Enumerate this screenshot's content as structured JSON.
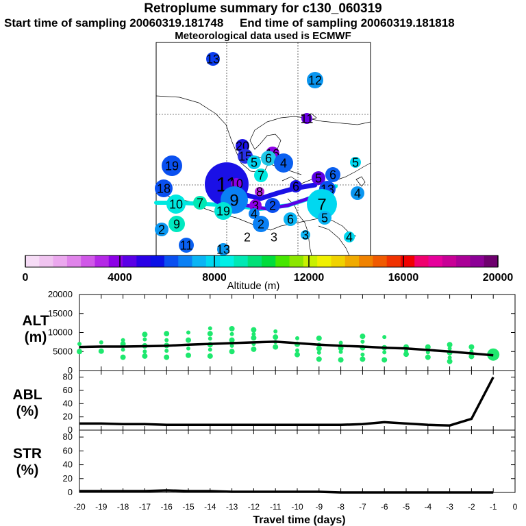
{
  "header": {
    "title": "Retroplume summary for c130_060319",
    "sampling_line": "Start time of sampling 20060319.181748     End time of sampling 20060319.181818",
    "met_line": "Meteorological data used is ECMWF"
  },
  "colors": {
    "colorbar": [
      "#f6dcf6",
      "#f0c4f0",
      "#eba8ee",
      "#e084ea",
      "#d058e8",
      "#b428e6",
      "#8c00e6",
      "#5a00e6",
      "#2a00e6",
      "#0a10e6",
      "#0a50f0",
      "#0a80f4",
      "#0ab4f4",
      "#00d8f0",
      "#00f0e6",
      "#00e8b4",
      "#00e078",
      "#00dc3c",
      "#46e600",
      "#8ce600",
      "#c8f000",
      "#f0f000",
      "#f0d200",
      "#f0aa00",
      "#f08200",
      "#f05a00",
      "#f03200",
      "#f00000",
      "#f0006e",
      "#e6009b",
      "#c80096",
      "#aa0096",
      "#8c0096",
      "#6e006e"
    ],
    "line": "#000000",
    "point": "#1ee86e"
  },
  "map": {
    "clusters": [
      {
        "label": "13",
        "color": "#0a3cf0",
        "size": 10
      },
      {
        "label": "12",
        "color": "#0a96f0",
        "size": 12
      },
      {
        "label": "11",
        "color": "#6a00e6",
        "size": 8
      },
      {
        "label": "20",
        "color": "#1a10e6",
        "size": 10
      },
      {
        "label": "16",
        "color": "#8c00e6",
        "size": 10
      },
      {
        "label": "15",
        "color": "#2830e6",
        "size": 11
      },
      {
        "label": "5",
        "color": "#00d0f0",
        "size": 10
      },
      {
        "label": "6",
        "color": "#20c8e8",
        "size": 11
      },
      {
        "label": "4",
        "color": "#0a60f0",
        "size": 14
      },
      {
        "label": "19",
        "color": "#0a50f0",
        "size": 15
      },
      {
        "label": "7",
        "color": "#00e8e0",
        "size": 10
      },
      {
        "label": "18",
        "color": "#0a50f0",
        "size": 13
      },
      {
        "label": "11",
        "color": "#1a10e6",
        "size": 32
      },
      {
        "label": "10",
        "color": "#8c00e6",
        "size": 8
      },
      {
        "label": "8",
        "color": "#b428e6",
        "size": 7
      },
      {
        "label": "6",
        "color": "#1a10e6",
        "size": 9
      },
      {
        "label": "5",
        "color": "#5a00e6",
        "size": 10
      },
      {
        "label": "13",
        "color": "#0a50f0",
        "size": 12
      },
      {
        "label": "6",
        "color": "#0a60f0",
        "size": 11
      },
      {
        "label": "5",
        "color": "#00d8f0",
        "size": 8
      },
      {
        "label": "4",
        "color": "#0a96f0",
        "size": 10
      },
      {
        "label": "10",
        "color": "#00e8e0",
        "size": 14
      },
      {
        "label": "7",
        "color": "#00e8b4",
        "size": 10
      },
      {
        "label": "9",
        "color": "#0a80f4",
        "size": 20
      },
      {
        "label": "19",
        "color": "#00e6d6",
        "size": 13
      },
      {
        "label": "3",
        "color": "#8c00e6",
        "size": 9
      },
      {
        "label": "2",
        "color": "#0a50f0",
        "size": 11
      },
      {
        "label": "4",
        "color": "#0a80f4",
        "size": 8
      },
      {
        "label": "7",
        "color": "#00d8f0",
        "size": 22
      },
      {
        "label": "2",
        "color": "#0a80f4",
        "size": 12
      },
      {
        "label": "6",
        "color": "#0ab4f4",
        "size": 10
      },
      {
        "label": "5",
        "color": "#0ab4f4",
        "size": 10
      },
      {
        "label": "9",
        "color": "#00e8c0",
        "size": 12
      },
      {
        "label": "2",
        "color": "#0a96f0",
        "size": 10
      },
      {
        "label": "11",
        "color": "#0a60f0",
        "size": 11
      },
      {
        "label": "13",
        "color": "#0a96f0",
        "size": 9
      },
      {
        "label": "2",
        "color": "#ffffff",
        "size": 0
      },
      {
        "label": "3",
        "color": "#ffffff",
        "size": 0
      },
      {
        "label": "3",
        "color": "#0ab4f4",
        "size": 7
      },
      {
        "label": "4",
        "color": "#00d8f0",
        "size": 8
      }
    ]
  },
  "colorbar_axis": {
    "ticks": [
      "0",
      "4000",
      "8000",
      "12000",
      "16000",
      "20000"
    ],
    "label": "Altitude (m)"
  },
  "panels": {
    "alt": {
      "label_top": "ALT",
      "label_bottom": "(m)"
    },
    "abl": {
      "label_top": "ABL",
      "label_bottom": "(%)"
    },
    "str": {
      "label_top": "STR",
      "label_bottom": "(%)"
    }
  },
  "chart_data": [
    {
      "type": "line",
      "title": "ALT",
      "ylabel": "ALT (m)",
      "xlabel": "Travel time (days)",
      "ylim": [
        0,
        20000
      ],
      "yticks": [
        "0",
        "5000",
        "10000",
        "15000",
        "20000"
      ],
      "x": [
        -20,
        -19,
        -18,
        -17,
        -16,
        -15,
        -14,
        -13,
        -12,
        -11,
        -10,
        -9,
        -8,
        -7,
        -6,
        -5,
        -4,
        -3,
        -2,
        -1
      ],
      "values": [
        6200,
        6300,
        6300,
        6400,
        6500,
        6800,
        7000,
        7200,
        7400,
        7600,
        7200,
        6800,
        6500,
        6300,
        6000,
        5800,
        5400,
        5000,
        4500,
        4000
      ],
      "points": [
        {
          "x": -20,
          "y": [
            5000,
            7000
          ]
        },
        {
          "x": -19,
          "y": [
            5100,
            7400
          ]
        },
        {
          "x": -18,
          "y": [
            3500,
            5500,
            7000,
            8000
          ]
        },
        {
          "x": -17,
          "y": [
            3800,
            5000,
            6500,
            8200,
            9500
          ]
        },
        {
          "x": -16,
          "y": [
            3500,
            5200,
            6600,
            8000,
            9700
          ]
        },
        {
          "x": -15,
          "y": [
            4000,
            5800,
            8000,
            10000
          ]
        },
        {
          "x": -14,
          "y": [
            3800,
            5500,
            6800,
            8400,
            9700,
            11100
          ]
        },
        {
          "x": -13,
          "y": [
            5000,
            6500,
            8000,
            9600,
            11000
          ]
        },
        {
          "x": -12,
          "y": [
            5600,
            7000,
            8600,
            9600,
            10700
          ]
        },
        {
          "x": -11,
          "y": [
            6200,
            7500,
            8800,
            10300
          ]
        },
        {
          "x": -10,
          "y": [
            4200,
            5300,
            6900,
            8500
          ]
        },
        {
          "x": -9,
          "y": [
            3000,
            4700,
            5800,
            6800,
            8500
          ]
        },
        {
          "x": -8,
          "y": [
            2800,
            4900,
            5900,
            7300
          ]
        },
        {
          "x": -7,
          "y": [
            3000,
            4200,
            6000,
            7600,
            9000
          ]
        },
        {
          "x": -6,
          "y": [
            2800,
            4800,
            6000,
            8800
          ]
        },
        {
          "x": -5,
          "y": [
            4300,
            5200,
            6200
          ]
        },
        {
          "x": -4,
          "y": [
            3500,
            4800,
            6200
          ]
        },
        {
          "x": -3,
          "y": [
            2400,
            3400,
            4700,
            5800,
            6800
          ]
        },
        {
          "x": -2,
          "y": [
            3700,
            5000,
            6200
          ]
        },
        {
          "x": -1,
          "y": [
            4200
          ]
        }
      ]
    },
    {
      "type": "line",
      "title": "ABL",
      "ylabel": "ABL (%)",
      "ylim": [
        0,
        90
      ],
      "yticks": [
        "0",
        "20",
        "40",
        "60",
        "80"
      ],
      "x": [
        -20,
        -19,
        -18,
        -17,
        -16,
        -15,
        -14,
        -13,
        -12,
        -11,
        -10,
        -9,
        -8,
        -7,
        -6,
        -5,
        -4,
        -3,
        -2,
        -1
      ],
      "values": [
        10,
        10,
        9,
        9,
        8,
        8,
        8,
        8,
        8,
        8,
        8,
        8,
        8,
        9,
        12,
        10,
        8,
        7,
        17,
        80
      ]
    },
    {
      "type": "line",
      "title": "STR",
      "ylabel": "STR (%)",
      "ylim": [
        0,
        90
      ],
      "yticks": [
        "0",
        "20",
        "40",
        "60",
        "80"
      ],
      "x": [
        -20,
        -19,
        -18,
        -17,
        -16,
        -15,
        -14,
        -13,
        -12,
        -11,
        -10,
        -9,
        -8,
        -7,
        -6,
        -5,
        -4,
        -3,
        -2,
        -1
      ],
      "values": [
        2,
        2,
        2,
        2,
        3,
        2,
        2,
        1,
        1,
        1,
        1,
        1,
        0,
        0,
        0,
        0,
        0,
        0,
        0,
        0
      ],
      "xlim": [
        -20,
        0
      ],
      "xticks": [
        "-20",
        "-19",
        "-18",
        "-17",
        "-16",
        "-15",
        "-14",
        "-13",
        "-12",
        "-11",
        "-10",
        "-9",
        "-8",
        "-7",
        "-6",
        "-5",
        "-4",
        "-3",
        "-2",
        "-1",
        "0"
      ],
      "xlabel": "Travel time (days)"
    }
  ]
}
